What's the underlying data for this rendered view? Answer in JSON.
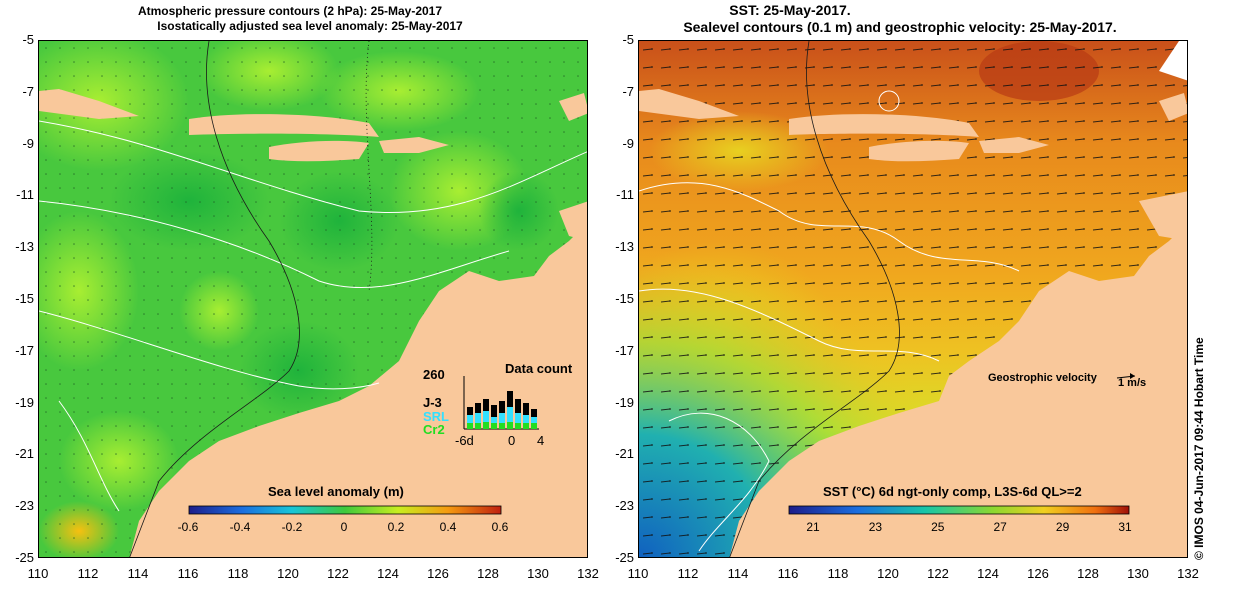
{
  "left_panel": {
    "title_line1": "Atmospheric pressure contours (2 hPa): 25-May-2017",
    "title_line2": "Isostatically adjusted sea level anomaly: 25-May-2017",
    "colorbar_label": "Sea level anomaly (m)",
    "colorbar_ticks": [
      "-0.6",
      "-0.4",
      "-0.2",
      "0",
      "0.2",
      "0.4",
      "0.6"
    ],
    "data_count": {
      "title": "Data count",
      "max_label": "260",
      "series_labels": [
        "J-3",
        "SRL",
        "Cr2"
      ],
      "series_colors": [
        "#000000",
        "#33e0ff",
        "#22dd22"
      ],
      "x_labels": [
        "-6d",
        "0",
        "4"
      ]
    }
  },
  "right_panel": {
    "title_line1": "SST: 25-May-2017.",
    "title_line2": "Sealevel contours (0.1 m) and geostrophic velocity: 25-May-2017.",
    "colorbar_label": "SST (°C) 6d ngt-only comp, L3S-6d QL>=2",
    "colorbar_ticks": [
      "21",
      "23",
      "25",
      "27",
      "29",
      "31"
    ],
    "velocity_legend": "Geostrophic velocity",
    "velocity_scale": "1 m/s"
  },
  "axes": {
    "y_ticks": [
      "-5",
      "-7",
      "-9",
      "-11",
      "-13",
      "-15",
      "-17",
      "-19",
      "-21",
      "-23",
      "-25"
    ],
    "x_ticks": [
      "110",
      "112",
      "114",
      "116",
      "118",
      "120",
      "122",
      "124",
      "126",
      "128",
      "130",
      "132"
    ]
  },
  "side_label": "© IMOS 04-Jun-2017 09:44 Hobart Time",
  "colors": {
    "land": "#f9c89b",
    "sla_base": "#3fc93c",
    "sst_base": "#e27a1a"
  }
}
